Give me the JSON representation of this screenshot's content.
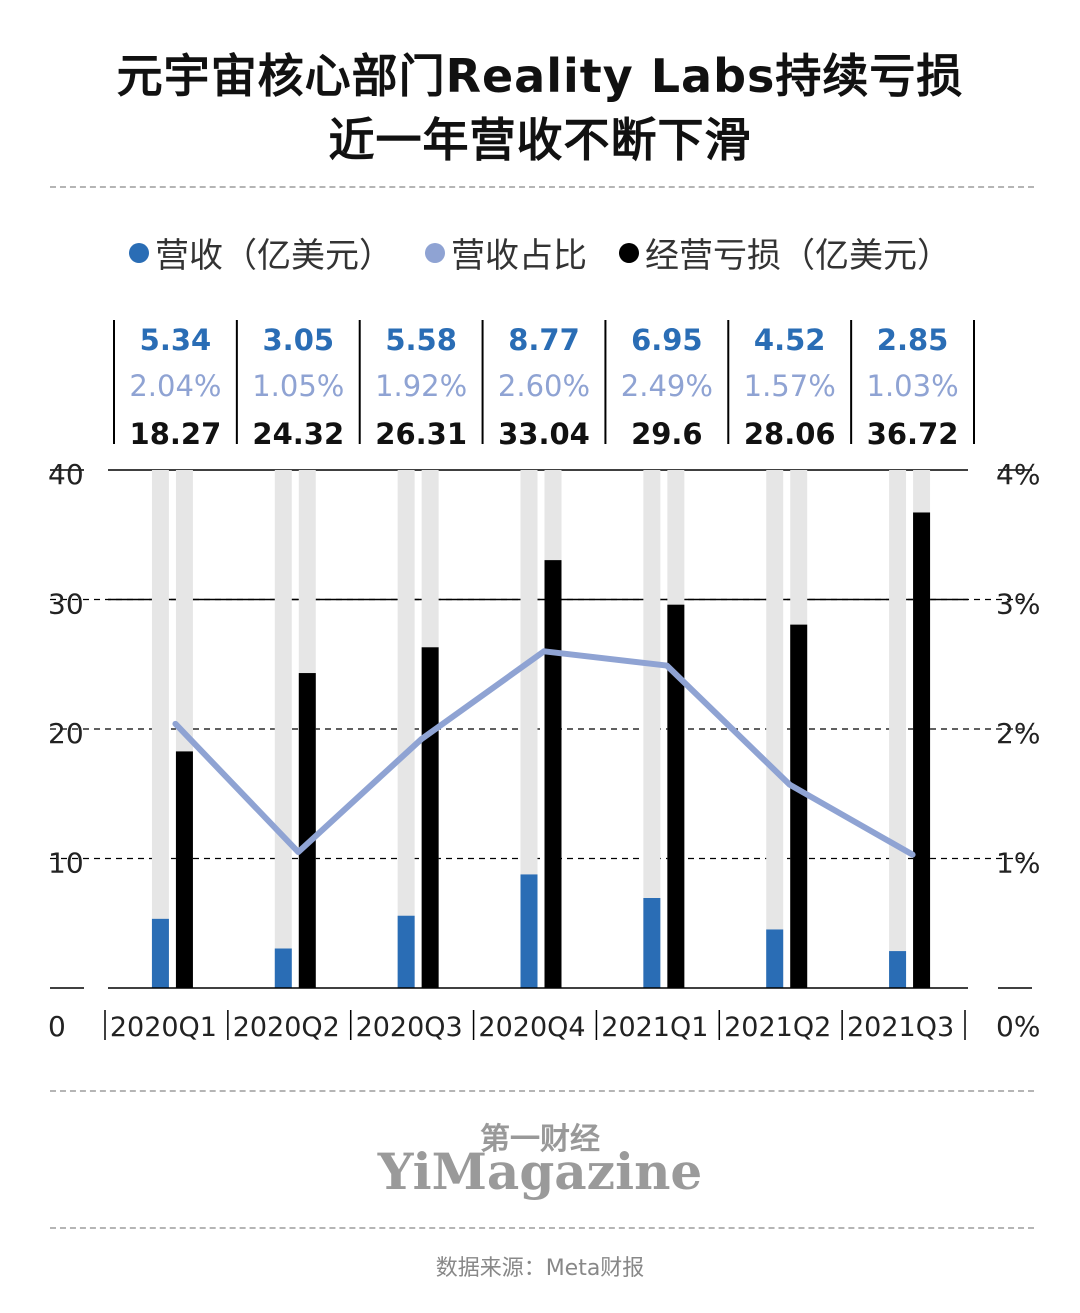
{
  "title_line1": "元宇宙核心部门Reality Labs持续亏损",
  "title_line2": "近一年营收不断下滑",
  "legend": [
    {
      "label": "营收（亿美元）",
      "color": "#2a6db5"
    },
    {
      "label": "营收占比",
      "color": "#8fa3d3"
    },
    {
      "label": "经营亏损（亿美元）",
      "color": "#000000"
    }
  ],
  "logo_cn": "第一财经",
  "logo_en": "YiMagazine",
  "source": "数据来源：Meta财报",
  "colors": {
    "revenue": "#2a6db5",
    "share": "#8fa3d3",
    "loss": "#000000",
    "track": "#e6e6e6"
  },
  "chart_data": {
    "type": "bar",
    "categories": [
      "2020Q1",
      "2020Q2",
      "2020Q3",
      "2020Q4",
      "2021Q1",
      "2021Q2",
      "2021Q3"
    ],
    "series": [
      {
        "name": "营收（亿美元）",
        "type": "bar",
        "axis": "left",
        "values": [
          5.34,
          3.05,
          5.58,
          8.77,
          6.95,
          4.52,
          2.85
        ],
        "labels": [
          "5.34",
          "3.05",
          "5.58",
          "8.77",
          "6.95",
          "4.52",
          "2.85"
        ]
      },
      {
        "name": "营收占比",
        "type": "line",
        "axis": "right",
        "unit": "%",
        "values": [
          2.04,
          1.05,
          1.92,
          2.6,
          2.49,
          1.57,
          1.03
        ],
        "labels": [
          "2.04%",
          "1.05%",
          "1.92%",
          "2.60%",
          "2.49%",
          "1.57%",
          "1.03%"
        ]
      },
      {
        "name": "经营亏损（亿美元）",
        "type": "bar",
        "axis": "left",
        "values": [
          18.27,
          24.32,
          26.31,
          33.04,
          29.6,
          28.06,
          36.72
        ],
        "labels": [
          "18.27",
          "24.32",
          "26.31",
          "33.04",
          "29.6",
          "28.06",
          "36.72"
        ]
      }
    ],
    "y_left": {
      "ticks": [
        "0",
        "10",
        "20",
        "30",
        "40"
      ],
      "range": [
        0,
        40
      ]
    },
    "y_right": {
      "ticks": [
        "0%",
        "1%",
        "2%",
        "3%",
        "4%"
      ],
      "range": [
        0,
        4
      ]
    },
    "grid": true,
    "legend_position": "top"
  }
}
